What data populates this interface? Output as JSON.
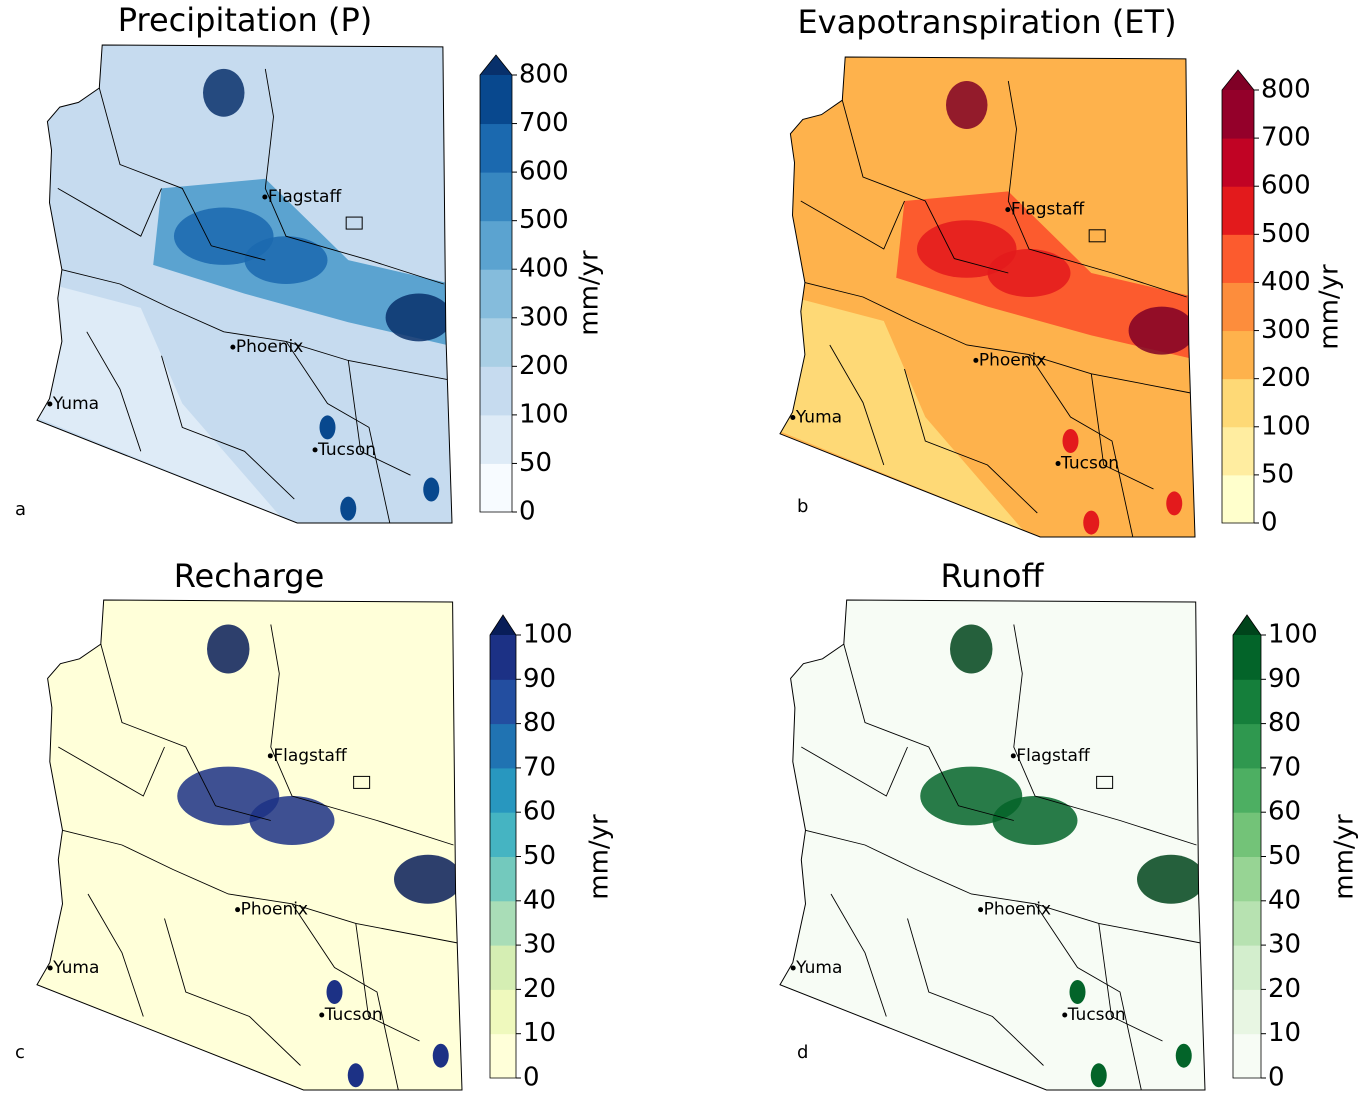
{
  "panels": [
    {
      "title": "Precipitation (P)",
      "letter": "a",
      "unit": "mm/yr",
      "ticks": [
        0,
        50,
        100,
        200,
        300,
        400,
        500,
        600,
        700,
        800
      ],
      "colors": [
        "#f7fbff",
        "#deebf7",
        "#c6dbef",
        "#a9cfe5",
        "#85bcdc",
        "#5ba3d0",
        "#3787c0",
        "#1b69af",
        "#08488e"
      ],
      "extend_color": "#08306b",
      "cities": [
        "Flagstaff",
        "Phoenix",
        "Yuma",
        "Tucson"
      ]
    },
    {
      "title": "Evapotranspiration (ET)",
      "letter": "b",
      "unit": "mm/yr",
      "ticks": [
        0,
        50,
        100,
        200,
        300,
        400,
        500,
        600,
        700,
        800
      ],
      "colors": [
        "#ffffcc",
        "#ffeda0",
        "#fed976",
        "#feb24c",
        "#fd8d3c",
        "#fc5b2e",
        "#e31a1c",
        "#c10324",
        "#94002a"
      ],
      "extend_color": "#800026",
      "cities": [
        "Flagstaff",
        "Phoenix",
        "Yuma",
        "Tucson"
      ]
    },
    {
      "title": "Recharge",
      "letter": "c",
      "unit": "mm/yr",
      "ticks": [
        0,
        10,
        20,
        30,
        40,
        50,
        60,
        70,
        80,
        90,
        100
      ],
      "colors": [
        "#ffffd9",
        "#eff9bd",
        "#d5eeb3",
        "#a9ddb7",
        "#73c9bd",
        "#45b4c2",
        "#2897bf",
        "#2073b2",
        "#234ea0",
        "#1c3185"
      ],
      "extend_color": "#081d58",
      "cities": [
        "Flagstaff",
        "Phoenix",
        "Yuma",
        "Tucson"
      ]
    },
    {
      "title": "Runoff",
      "letter": "d",
      "unit": "mm/yr",
      "ticks": [
        0,
        10,
        20,
        30,
        40,
        50,
        60,
        70,
        80,
        90,
        100
      ],
      "colors": [
        "#f7fcf5",
        "#e8f6e3",
        "#d3eecd",
        "#b7e2b1",
        "#97d494",
        "#73c378",
        "#4daf62",
        "#2f984f",
        "#157f3b",
        "#036429"
      ],
      "extend_color": "#00441b",
      "cities": [
        "Flagstaff",
        "Phoenix",
        "Yuma",
        "Tucson"
      ]
    }
  ]
}
